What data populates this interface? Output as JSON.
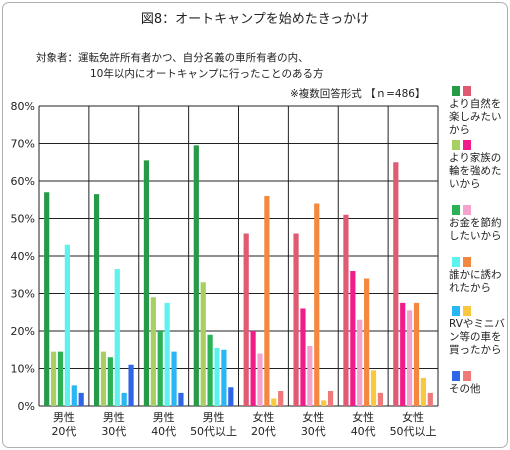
{
  "title": "図8：オートキャンプを始めたきっかけ",
  "subject": {
    "line1": "対象者：運転免許所有者かつ、自分名義の車所有者の内、",
    "line2": "10年以内にオートキャンプに行ったことのある方"
  },
  "note": "※複数回答形式 【ｎ=486】",
  "chart_data": {
    "type": "bar",
    "title": "図8：オートキャンプを始めたきっかけ",
    "categories": [
      "男性\n20代",
      "男性\n30代",
      "男性\n40代",
      "男性\n50代以上",
      "女性\n20代",
      "女性\n30代",
      "女性\n40代",
      "女性\n50代以上"
    ],
    "ylim": [
      0,
      80
    ],
    "yticks": [
      "0%",
      "10%",
      "20%",
      "30%",
      "40%",
      "50%",
      "60%",
      "70%",
      "80%"
    ],
    "grid": true,
    "legend_position": "right",
    "series": [
      {
        "name": "より自然を楽しみたいから",
        "values": [
          57,
          56.5,
          65.5,
          69.5,
          46,
          46,
          51,
          65
        ]
      },
      {
        "name": "より家族の輪を強めたいから",
        "values": [
          14.5,
          14.5,
          29,
          33,
          20,
          26,
          36,
          27.5
        ]
      },
      {
        "name": "お金を節約したいから",
        "values": [
          14.5,
          13,
          20,
          19,
          14,
          16,
          23,
          25.5
        ]
      },
      {
        "name": "誰かに誘われたから",
        "values": [
          43,
          36.5,
          27.5,
          15.5,
          56,
          54,
          34,
          27.5
        ]
      },
      {
        "name": "RVやミニバン等の車を買ったから",
        "values": [
          5.5,
          3.5,
          14.5,
          15,
          2,
          1.5,
          9.5,
          7.5
        ]
      },
      {
        "name": "その他",
        "values": [
          3.5,
          11,
          3.5,
          5,
          4,
          4,
          3.5,
          3.5
        ]
      }
    ]
  },
  "colors": {
    "male": [
      "#279a48",
      "#a8cf62",
      "#2cb256",
      "#5ef2ee",
      "#28b7f2",
      "#2f66e8"
    ],
    "female": [
      "#e05a72",
      "#f01c8a",
      "#f6a2cf",
      "#f5883f",
      "#f8c843",
      "#f07a7a"
    ]
  }
}
